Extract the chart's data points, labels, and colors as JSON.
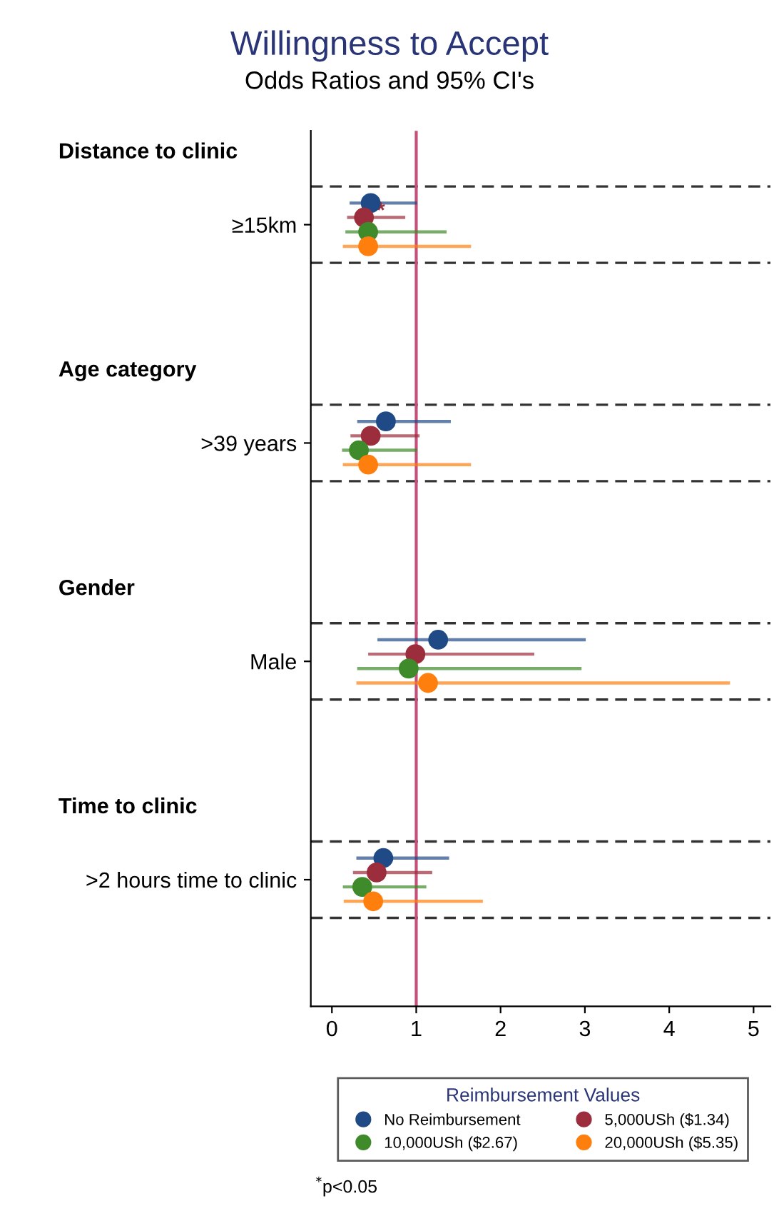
{
  "chart_data": {
    "type": "scatter",
    "orientation": "horizontal",
    "title": "Willingness to Accept",
    "subtitle": "Odds Ratios and 95% CI's",
    "categories": [
      "≥15km",
      ">39 years",
      "Male",
      ">2 hours time to clinic"
    ],
    "series": [
      {
        "name": "No Reimbursement",
        "color": "#1f4a86",
        "values": [
          0.46,
          0.64,
          1.26,
          0.61
        ],
        "errors": [
          [
            0.21,
            1.01
          ],
          [
            0.3,
            1.41
          ],
          [
            0.54,
            3.01
          ],
          [
            0.29,
            1.39
          ]
        ]
      },
      {
        "name": "5,000USh ($1.34)",
        "color": "#9b2d3c",
        "values": [
          0.38,
          0.46,
          0.99,
          0.53
        ],
        "errors": [
          [
            0.18,
            0.87
          ],
          [
            0.22,
            1.04
          ],
          [
            0.43,
            2.4
          ],
          [
            0.25,
            1.19
          ]
        ]
      },
      {
        "name": "10,000USh ($2.67)",
        "color": "#3f8a2a",
        "values": [
          0.43,
          0.32,
          0.91,
          0.36
        ],
        "errors": [
          [
            0.16,
            1.36
          ],
          [
            0.12,
            1.01
          ],
          [
            0.3,
            2.96
          ],
          [
            0.13,
            1.12
          ]
        ]
      },
      {
        "name": "20,000USh ($5.35)",
        "color": "#ff7f0e",
        "values": [
          0.43,
          0.43,
          1.14,
          0.49
        ],
        "errors": [
          [
            0.13,
            1.65
          ],
          [
            0.13,
            1.65
          ],
          [
            0.29,
            4.72
          ],
          [
            0.14,
            1.79
          ]
        ]
      }
    ],
    "xlim": [
      -0.25,
      5.2
    ],
    "xticks": [
      0,
      1,
      2,
      3,
      4,
      5
    ],
    "ref_lines": [
      {
        "axis": "x",
        "value": 1,
        "color": "#c4507a"
      }
    ],
    "legend_title": "Reimbursement Values",
    "legend": "bottom",
    "marker": "circle",
    "grid": false,
    "annotations": [
      "Distance to clinic",
      "Age category",
      "Gender",
      "Time to clinic",
      "*",
      "$^{*}$p<0.05"
    ]
  }
}
